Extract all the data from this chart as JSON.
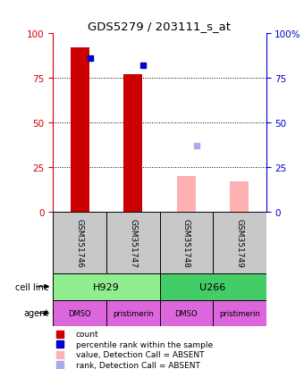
{
  "title": "GDS5279 / 203111_s_at",
  "samples": [
    "GSM351746",
    "GSM351747",
    "GSM351748",
    "GSM351749"
  ],
  "count_values": [
    92,
    77,
    0,
    0
  ],
  "rank_values": [
    86,
    82,
    0,
    0
  ],
  "absent_value": [
    0,
    0,
    20,
    17
  ],
  "absent_rank": [
    0,
    0,
    37,
    0
  ],
  "cell_line_spans": [
    [
      "H929",
      0,
      2,
      "#90EE90"
    ],
    [
      "U266",
      2,
      4,
      "#44CC66"
    ]
  ],
  "agent": [
    "DMSO",
    "pristimerin",
    "DMSO",
    "pristimerin"
  ],
  "agent_color": "#DD66DD",
  "color_count": "#CC0000",
  "color_rank": "#0000CC",
  "color_absent_value": "#FFB0B0",
  "color_absent_rank": "#AAAAEE",
  "ylim": [
    0,
    100
  ],
  "yticks": [
    0,
    25,
    50,
    75,
    100
  ],
  "bar_width": 0.35,
  "legend_items": [
    {
      "label": "count",
      "color": "#CC0000"
    },
    {
      "label": "percentile rank within the sample",
      "color": "#0000CC"
    },
    {
      "label": "value, Detection Call = ABSENT",
      "color": "#FFB0B0"
    },
    {
      "label": "rank, Detection Call = ABSENT",
      "color": "#AAAAEE"
    }
  ]
}
